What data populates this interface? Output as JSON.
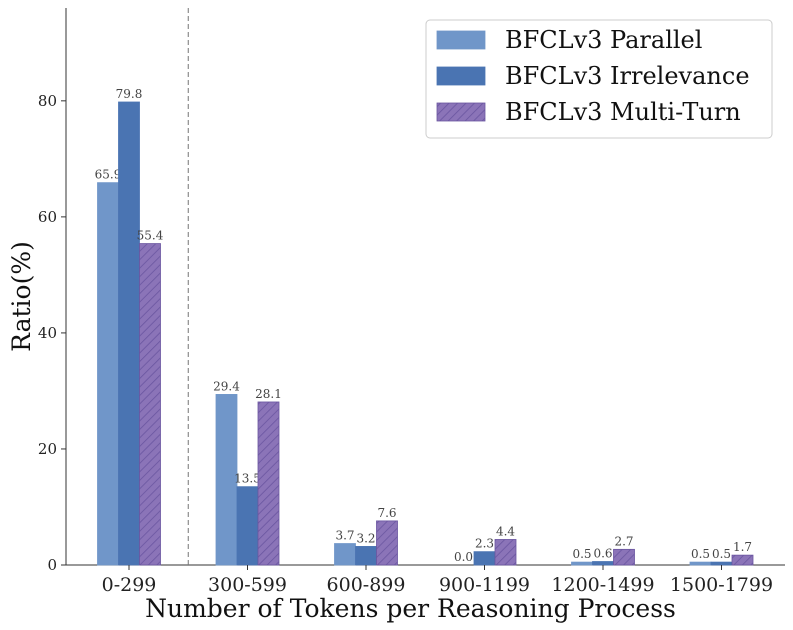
{
  "chart_data": {
    "type": "bar",
    "title": "",
    "xlabel": "Number of Tokens per Reasoning Process",
    "ylabel": "Ratio(%)",
    "ylim": [
      0,
      96
    ],
    "yticks": [
      0,
      20,
      40,
      60,
      80
    ],
    "categories": [
      "0-299",
      "300-599",
      "600-899",
      "900-1199",
      "1200-1499",
      "1500-1799"
    ],
    "series": [
      {
        "name": "BFCLv3 Parallel",
        "color": "#7096c9",
        "pattern": "solid",
        "values": [
          65.9,
          29.4,
          3.7,
          0.0,
          0.5,
          0.5
        ],
        "labels": [
          "65.9",
          "29.4",
          "3.7",
          "0.0",
          "0.5",
          "0.5"
        ]
      },
      {
        "name": "BFCLv3 Irrelevance",
        "color": "#4a74b2",
        "pattern": "solid",
        "values": [
          79.8,
          13.5,
          3.2,
          2.3,
          0.6,
          0.5
        ],
        "labels": [
          "79.8",
          "13.5",
          "3.2",
          "2.3",
          "0.6",
          "0.5"
        ]
      },
      {
        "name": "BFCLv3 Multi-Turn",
        "color": "#8b74b8",
        "pattern": "hatch",
        "values": [
          55.4,
          28.1,
          7.6,
          4.4,
          2.7,
          1.7
        ],
        "labels": [
          "55.4",
          "28.1",
          "7.6",
          "4.4",
          "2.7",
          "1.7"
        ]
      }
    ],
    "separator_after_category": "0-299",
    "grid": false,
    "legend_position": "top-right"
  }
}
